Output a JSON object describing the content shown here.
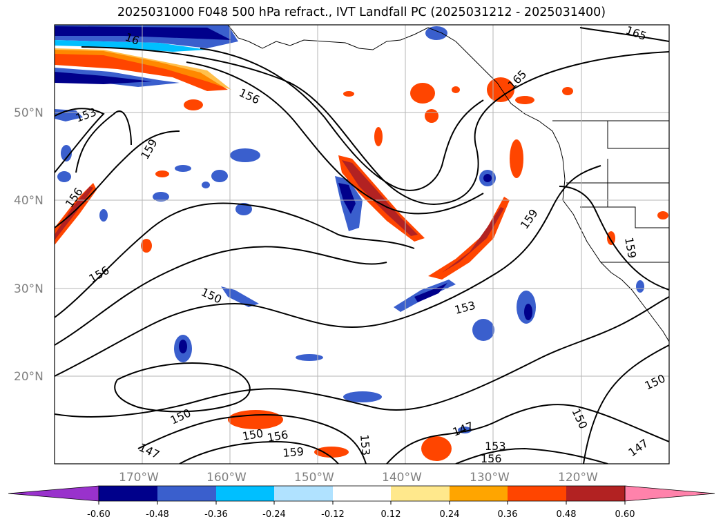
{
  "title": "2025031000 F048 500 hPa refract., IVT Landfall PC (2025031212 - 2025031400)",
  "lat_labels": [
    "50°N",
    "40°N",
    "30°N",
    "20°N"
  ],
  "lon_labels": [
    "170°W",
    "160°W",
    "150°W",
    "140°W",
    "130°W",
    "120°W"
  ],
  "contour_labels": [
    {
      "text": "153"
    },
    {
      "text": "156"
    },
    {
      "text": "159"
    },
    {
      "text": "156"
    },
    {
      "text": "156"
    },
    {
      "text": "150"
    },
    {
      "text": "150"
    },
    {
      "text": "150"
    },
    {
      "text": "147"
    },
    {
      "text": "156"
    },
    {
      "text": "159"
    },
    {
      "text": "153"
    },
    {
      "text": "147"
    },
    {
      "text": "153"
    },
    {
      "text": "156"
    },
    {
      "text": "150"
    },
    {
      "text": "150"
    },
    {
      "text": "147"
    },
    {
      "text": "159"
    },
    {
      "text": "159"
    },
    {
      "text": "165"
    },
    {
      "text": "165"
    },
    {
      "text": "153"
    },
    {
      "text": "16"
    }
  ],
  "colorbar": {
    "ticks": [
      "-0.60",
      "-0.48",
      "-0.36",
      "-0.24",
      "-0.12",
      "0.12",
      "0.24",
      "0.36",
      "0.48",
      "0.60"
    ],
    "colors": [
      "#9932CC",
      "#00008B",
      "#3A5FCD",
      "#00BFFF",
      "#B0E2FF",
      "#FFFFFF",
      "#FFE88C",
      "#FFA500",
      "#FF4500",
      "#B22222",
      "#FF82AB"
    ]
  },
  "colors": {
    "strong_neg": "#00008B",
    "mid_neg": "#3A5FCD",
    "light_neg": "#00BFFF",
    "faint_neg": "#B0E2FF",
    "faint_pos": "#FFE88C",
    "light_pos": "#FFA500",
    "mid_pos": "#FF4500",
    "strong_pos": "#B22222"
  }
}
